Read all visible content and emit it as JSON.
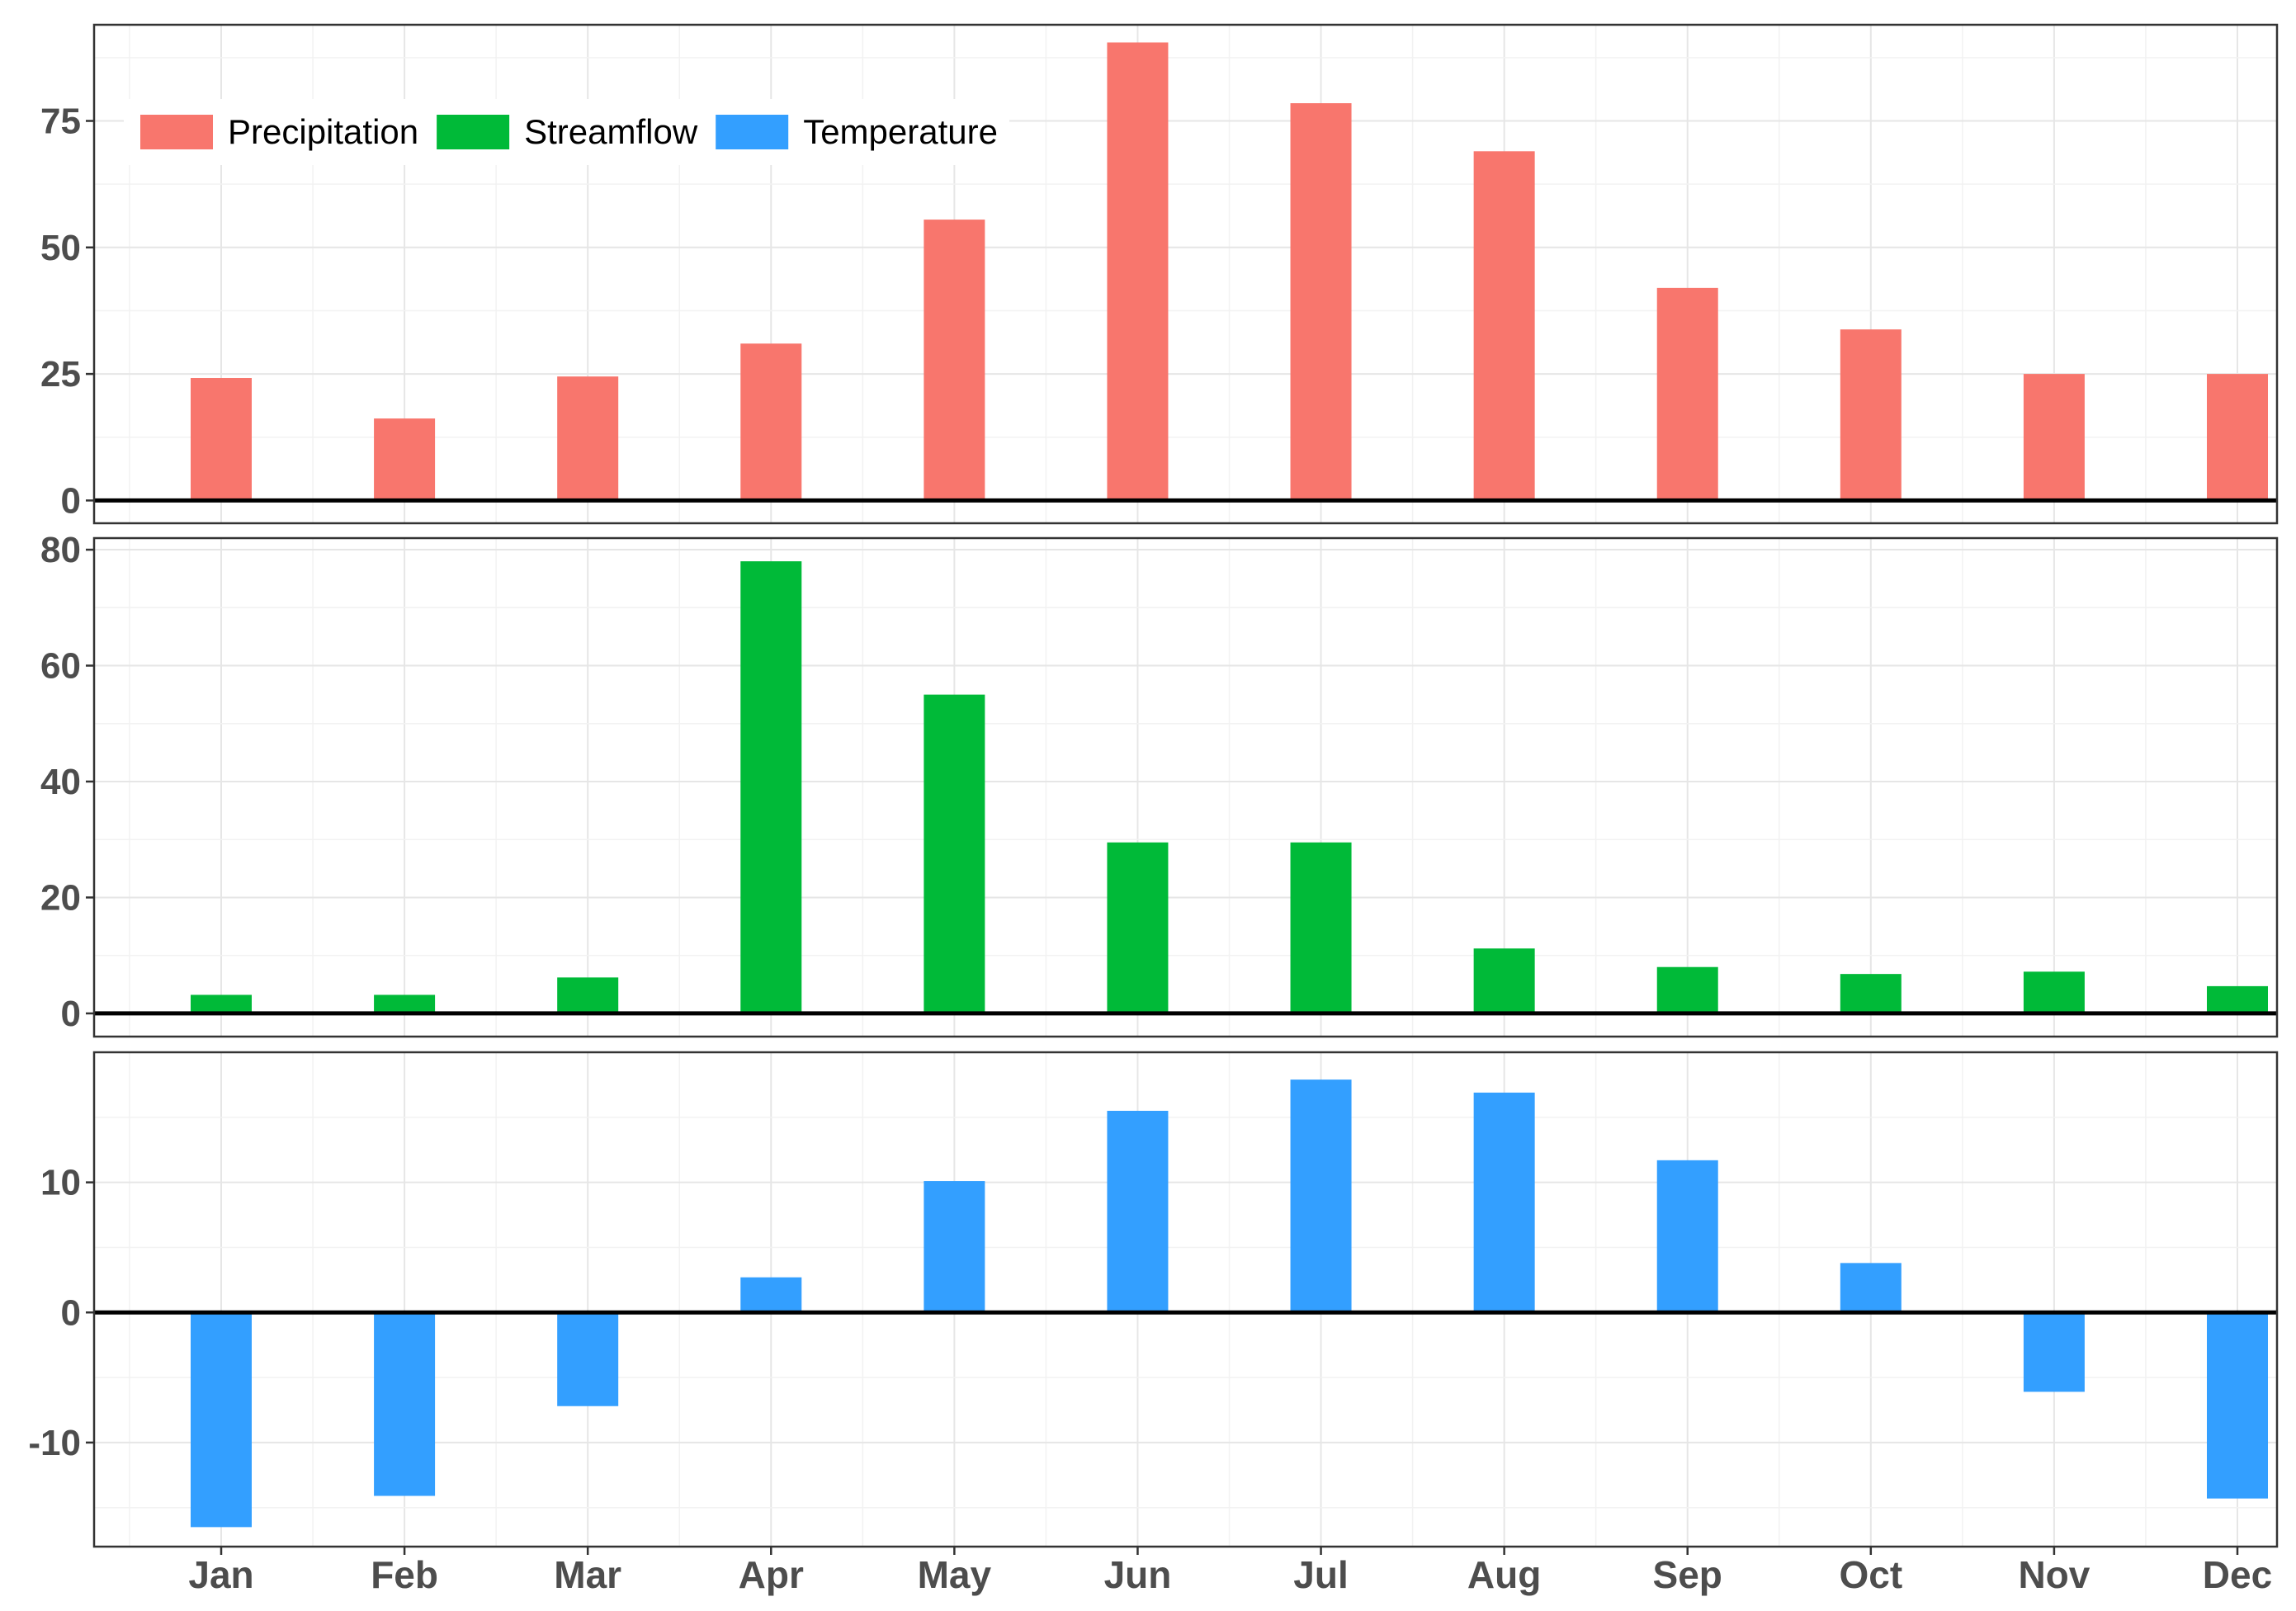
{
  "chart_data": {
    "type": "bar",
    "categories": [
      "Jan",
      "Feb",
      "Mar",
      "Apr",
      "May",
      "Jun",
      "Jul",
      "Aug",
      "Sep",
      "Oct",
      "Nov",
      "Dec"
    ],
    "legend": {
      "placement": "top-left inside first panel"
    },
    "grid": true,
    "panels": [
      {
        "name": "Precipitation",
        "color": "#F8766D",
        "ylim": [
          -4.5,
          94
        ],
        "yticks": [
          0,
          25,
          50,
          75
        ],
        "tick_labels": [
          "0",
          "25",
          "50",
          "75"
        ],
        "values": [
          24.2,
          16.2,
          24.5,
          31,
          55.5,
          90.5,
          78.5,
          69,
          42,
          33.8,
          25,
          25
        ]
      },
      {
        "name": "Streamflow",
        "color": "#00BA38",
        "ylim": [
          -4,
          82
        ],
        "yticks": [
          0,
          20,
          40,
          60,
          80
        ],
        "tick_labels": [
          "0",
          "20",
          "40",
          "60",
          "80"
        ],
        "values": [
          3.2,
          3.2,
          6.2,
          78,
          55,
          29.5,
          29.5,
          11.2,
          8,
          6.8,
          7.2,
          4.7
        ]
      },
      {
        "name": "Temperature",
        "color": "#339FFF",
        "ylim": [
          -18,
          20
        ],
        "yticks": [
          -10,
          0,
          10
        ],
        "tick_labels": [
          "-10",
          "0",
          "10"
        ],
        "values": [
          -16.5,
          -14.1,
          -7.2,
          2.7,
          10.1,
          15.5,
          17.9,
          16.9,
          11.7,
          3.8,
          -6.1,
          -14.3
        ]
      }
    ]
  }
}
